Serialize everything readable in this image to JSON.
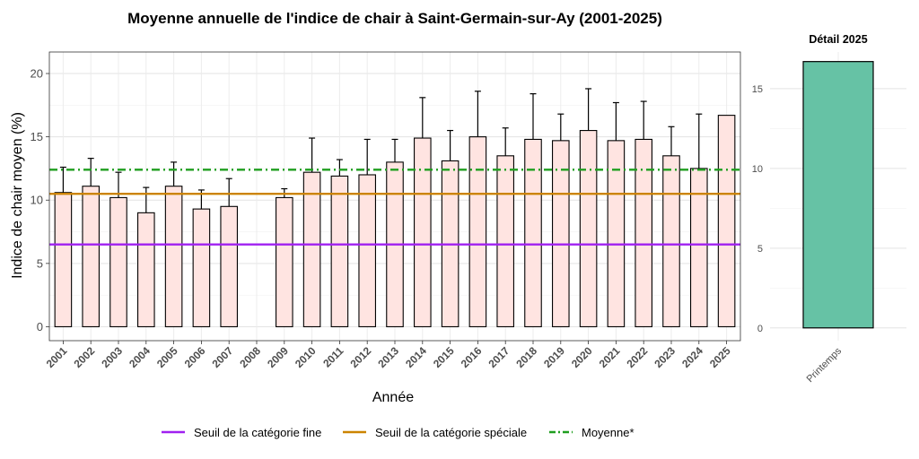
{
  "chart_data": [
    {
      "type": "bar",
      "title": "Moyenne annuelle de l'indice de chair à Saint-Germain-sur-Ay (2001-2025)",
      "xlabel": "Année",
      "ylabel": "Indice de chair moyen (%)",
      "ylim": [
        -1.1,
        21.7
      ],
      "yticks": [
        0,
        5,
        10,
        15,
        20
      ],
      "grid": true,
      "categories": [
        "2001",
        "2002",
        "2003",
        "2004",
        "2005",
        "2006",
        "2007",
        "2008",
        "2009",
        "2010",
        "2011",
        "2012",
        "2013",
        "2014",
        "2015",
        "2016",
        "2017",
        "2018",
        "2019",
        "2020",
        "2021",
        "2022",
        "2023",
        "2024",
        "2025"
      ],
      "values": [
        10.6,
        11.1,
        10.2,
        9.0,
        11.1,
        9.3,
        9.5,
        null,
        10.2,
        12.2,
        11.9,
        12.0,
        13.0,
        14.9,
        13.1,
        15.0,
        13.5,
        14.8,
        14.7,
        15.5,
        14.7,
        14.8,
        13.5,
        12.5,
        16.7
      ],
      "error_upper": [
        12.6,
        13.3,
        12.2,
        11.0,
        13.0,
        10.8,
        11.7,
        null,
        10.9,
        14.9,
        13.2,
        14.8,
        14.8,
        18.1,
        15.5,
        18.6,
        15.7,
        18.4,
        16.8,
        18.8,
        17.7,
        17.8,
        15.8,
        16.8,
        null
      ],
      "reference_lines": [
        {
          "name": "Seuil de la catégorie fine",
          "value": 6.5,
          "color": "#a020f0",
          "style": "solid"
        },
        {
          "name": "Seuil de la catégorie spéciale",
          "value": 10.5,
          "color": "#cc8400",
          "style": "solid"
        },
        {
          "name": "Moyenne*",
          "value": 12.4,
          "color": "#1f9e1f",
          "style": "dashdot"
        }
      ],
      "bar_fill": "#ffe4e1",
      "bar_stroke": "#000000",
      "legend_position": "bottom"
    },
    {
      "type": "bar",
      "title": "Détail 2025",
      "categories": [
        "Printemps"
      ],
      "values": [
        16.7
      ],
      "ylim": [
        -0.8,
        17.3
      ],
      "yticks": [
        0,
        5,
        10,
        15
      ],
      "grid": true,
      "bar_fill": "#66c2a5",
      "bar_stroke": "#000000"
    }
  ]
}
